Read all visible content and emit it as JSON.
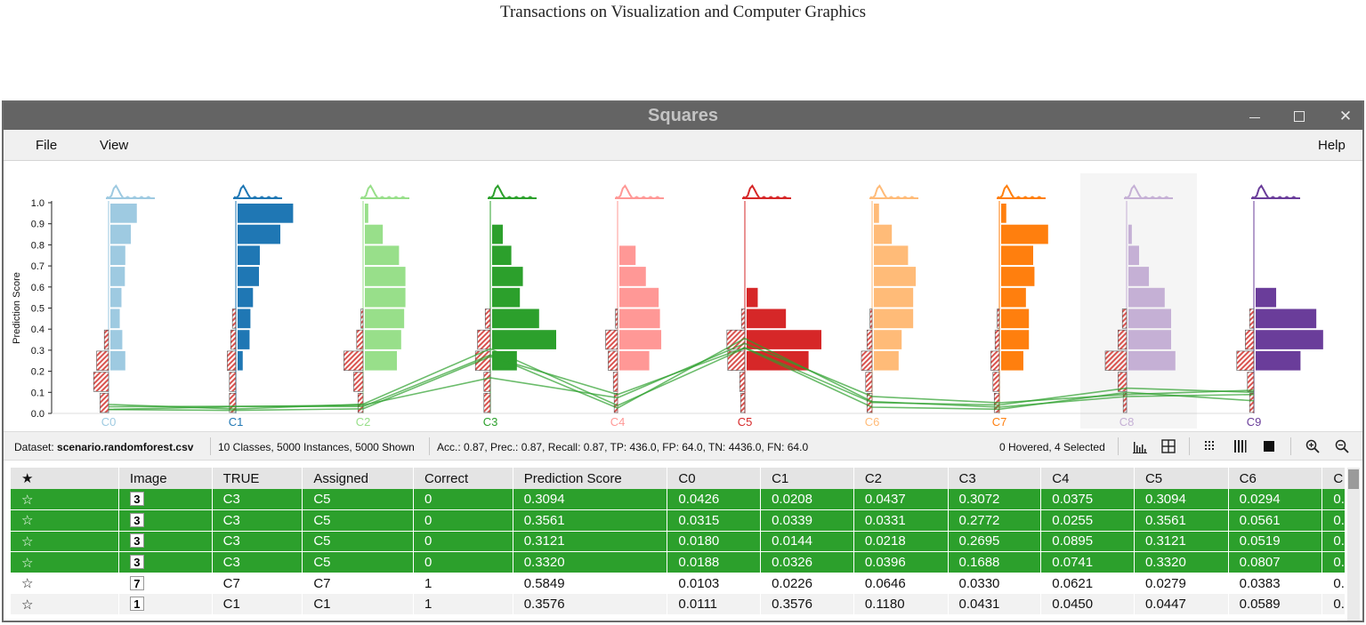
{
  "journal_header": "Transactions on Visualization and Computer Graphics",
  "window": {
    "title": "Squares",
    "controls": {
      "minimize": "minimize-icon",
      "maximize": "maximize-icon",
      "close": "close-icon"
    }
  },
  "menu": {
    "file": "File",
    "view": "View",
    "help": "Help"
  },
  "colors": {
    "C0": "#9ecae1",
    "C1": "#1f77b4",
    "C2": "#98df8a",
    "C3": "#2ca02c",
    "C4": "#ff9896",
    "C5": "#d62728",
    "C6": "#ffbb78",
    "C7": "#ff7f0e",
    "C8": "#c5b0d5",
    "C9": "#6a3d9a",
    "selection": "#2ca02c"
  },
  "chart_data": {
    "type": "bar",
    "ylabel": "Prediction Score",
    "yticks": [
      "0.0",
      "0.1",
      "0.2",
      "0.3",
      "0.4",
      "0.5",
      "0.6",
      "0.7",
      "0.8",
      "0.9",
      "1.0"
    ],
    "ylim": [
      0,
      1
    ],
    "bins": [
      0.05,
      0.15,
      0.25,
      0.35,
      0.45,
      0.55,
      0.65,
      0.75,
      0.85,
      0.95
    ],
    "highlighted_class": "C8",
    "classes": [
      {
        "name": "C0",
        "tp": [
          0,
          0,
          0.35,
          0.28,
          0.22,
          0.26,
          0.34,
          0.35,
          0.48,
          0.62
        ],
        "fp_left": [
          0.2,
          0.35,
          0.28,
          0.1,
          0,
          0,
          0,
          0,
          0,
          0
        ]
      },
      {
        "name": "C1",
        "tp": [
          0,
          0,
          0.12,
          0.28,
          0.3,
          0.36,
          0.5,
          0.52,
          1.0,
          1.3
        ],
        "fp_left": [
          0.15,
          0.15,
          0.2,
          0.12,
          0.08,
          0,
          0,
          0,
          0,
          0
        ]
      },
      {
        "name": "C2",
        "tp": [
          0,
          0,
          0.75,
          0.85,
          0.92,
          0.95,
          0.95,
          0.8,
          0.42,
          0.08
        ],
        "fp_left": [
          0.12,
          0.22,
          0.45,
          0.15,
          0.05,
          0,
          0,
          0,
          0,
          0
        ]
      },
      {
        "name": "C3",
        "tp": [
          0,
          0,
          0.58,
          1.5,
          1.1,
          0.65,
          0.72,
          0.45,
          0.25,
          0
        ],
        "fp_left": [
          0.15,
          0.15,
          0.35,
          0.3,
          0.12,
          0,
          0,
          0,
          0,
          0
        ]
      },
      {
        "name": "C4",
        "tp": [
          0,
          0,
          0.7,
          0.98,
          0.95,
          0.92,
          0.62,
          0.38,
          0,
          0
        ],
        "fp_left": [
          0.08,
          0.1,
          0.22,
          0.28,
          0.05,
          0,
          0,
          0,
          0,
          0
        ]
      },
      {
        "name": "C5",
        "tp": [
          0,
          0,
          1.45,
          1.75,
          0.92,
          0.26,
          0,
          0,
          0,
          0
        ],
        "fp_left": [
          0.1,
          0.12,
          0.4,
          0.42,
          0.08,
          0,
          0,
          0,
          0,
          0
        ]
      },
      {
        "name": "C6",
        "tp": [
          0,
          0,
          0.58,
          0.65,
          0.92,
          0.92,
          0.98,
          0.8,
          0.42,
          0.12
        ],
        "fp_left": [
          0.12,
          0.15,
          0.25,
          0.12,
          0.05,
          0,
          0,
          0,
          0,
          0
        ]
      },
      {
        "name": "C7",
        "tp": [
          0,
          0,
          0.52,
          0.65,
          0.65,
          0.58,
          0.78,
          0.75,
          1.1,
          0.12
        ],
        "fp_left": [
          0.12,
          0.15,
          0.2,
          0.1,
          0.05,
          0,
          0,
          0,
          0,
          0
        ]
      },
      {
        "name": "C8",
        "tp": [
          0,
          0,
          1.1,
          1.0,
          1.0,
          0.85,
          0.48,
          0.25,
          0.08,
          0
        ],
        "fp_left": [
          0.08,
          0.2,
          0.5,
          0.2,
          0.1,
          0,
          0,
          0,
          0,
          0
        ]
      },
      {
        "name": "C9",
        "tp": [
          0,
          0,
          1.05,
          1.58,
          1.42,
          0.48,
          0,
          0,
          0,
          0
        ],
        "fp_left": [
          0.1,
          0.15,
          0.4,
          0.2,
          0.1,
          0,
          0,
          0,
          0,
          0
        ]
      }
    ],
    "selected_instance_scores": [
      [
        0.0426,
        0.0208,
        0.0437,
        0.3072,
        0.0375,
        0.3094,
        0.0294,
        0.02,
        0.1,
        0.06
      ],
      [
        0.0315,
        0.0339,
        0.0331,
        0.2772,
        0.0255,
        0.3561,
        0.0561,
        0.03,
        0.08,
        0.09
      ],
      [
        0.018,
        0.0144,
        0.0218,
        0.2695,
        0.0895,
        0.3121,
        0.0519,
        0.04,
        0.12,
        0.1
      ],
      [
        0.0188,
        0.0326,
        0.0396,
        0.1688,
        0.0741,
        0.332,
        0.0807,
        0.05,
        0.09,
        0.11
      ]
    ]
  },
  "status": {
    "dataset_label": "Dataset: ",
    "dataset_name": "scenario.randomforest.csv",
    "summary": "10 Classes, 5000 Instances, 5000 Shown",
    "metrics": "Acc.: 0.87, Prec.: 0.87, Recall: 0.87, TP: 436.0, FP: 64.0, TN: 4436.0, FN: 64.0",
    "hover_select": "0 Hovered, 4 Selected",
    "tools": [
      "histogram-icon",
      "grid-icon",
      "dots-icon",
      "bars-icon",
      "square-icon",
      "zoom-in-icon",
      "zoom-out-icon"
    ]
  },
  "table": {
    "columns": [
      "★",
      "Image",
      "TRUE",
      "Assigned",
      "Correct",
      "Prediction Score",
      "C0",
      "C1",
      "C2",
      "C3",
      "C4",
      "C5",
      "C6",
      "C"
    ],
    "rows": [
      {
        "selected": true,
        "star": "☆",
        "glyph": "3",
        "true": "C3",
        "assigned": "C5",
        "correct": "0",
        "score": "0.3094",
        "c": [
          "0.0426",
          "0.0208",
          "0.0437",
          "0.3072",
          "0.0375",
          "0.3094",
          "0.0294",
          "0."
        ]
      },
      {
        "selected": true,
        "star": "☆",
        "glyph": "3",
        "true": "C3",
        "assigned": "C5",
        "correct": "0",
        "score": "0.3561",
        "c": [
          "0.0315",
          "0.0339",
          "0.0331",
          "0.2772",
          "0.0255",
          "0.3561",
          "0.0561",
          "0."
        ]
      },
      {
        "selected": true,
        "star": "☆",
        "glyph": "3",
        "true": "C3",
        "assigned": "C5",
        "correct": "0",
        "score": "0.3121",
        "c": [
          "0.0180",
          "0.0144",
          "0.0218",
          "0.2695",
          "0.0895",
          "0.3121",
          "0.0519",
          "0."
        ]
      },
      {
        "selected": true,
        "star": "☆",
        "glyph": "3",
        "true": "C3",
        "assigned": "C5",
        "correct": "0",
        "score": "0.3320",
        "c": [
          "0.0188",
          "0.0326",
          "0.0396",
          "0.1688",
          "0.0741",
          "0.3320",
          "0.0807",
          "0."
        ]
      },
      {
        "selected": false,
        "star": "☆",
        "glyph": "7",
        "true": "C7",
        "assigned": "C7",
        "correct": "1",
        "score": "0.5849",
        "c": [
          "0.0103",
          "0.0226",
          "0.0646",
          "0.0330",
          "0.0621",
          "0.0279",
          "0.0383",
          "0."
        ]
      },
      {
        "selected": false,
        "star": "☆",
        "glyph": "1",
        "true": "C1",
        "assigned": "C1",
        "correct": "1",
        "score": "0.3576",
        "c": [
          "0.0111",
          "0.3576",
          "0.1180",
          "0.0431",
          "0.0450",
          "0.0447",
          "0.0589",
          "0."
        ]
      }
    ]
  }
}
